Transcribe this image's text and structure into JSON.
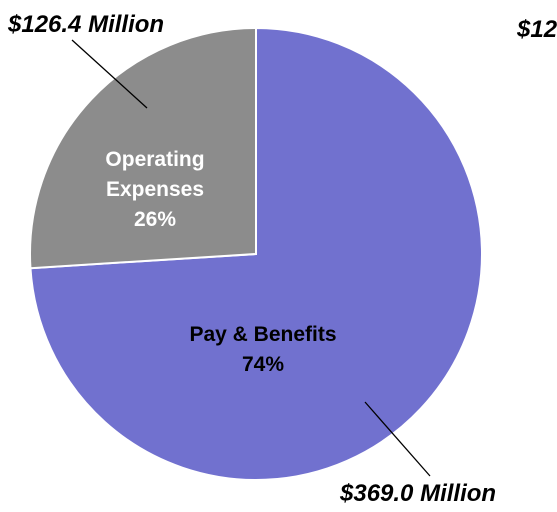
{
  "chart_data": {
    "type": "pie",
    "slices": [
      {
        "name": "Operating Expenses",
        "percent": 26,
        "value_label": "$126.4 Million",
        "color": "#8c8c8c"
      },
      {
        "name": "Pay & Benefits",
        "percent": 74,
        "value_label": "$369.0 Million",
        "color": "#7171cf"
      }
    ],
    "labels": {
      "op_line1": "Operating",
      "op_line2": "Expenses",
      "op_pct": "26%",
      "pay_line1": "Pay & Benefits",
      "pay_pct": "74%",
      "clipped_amount": "$12"
    }
  }
}
